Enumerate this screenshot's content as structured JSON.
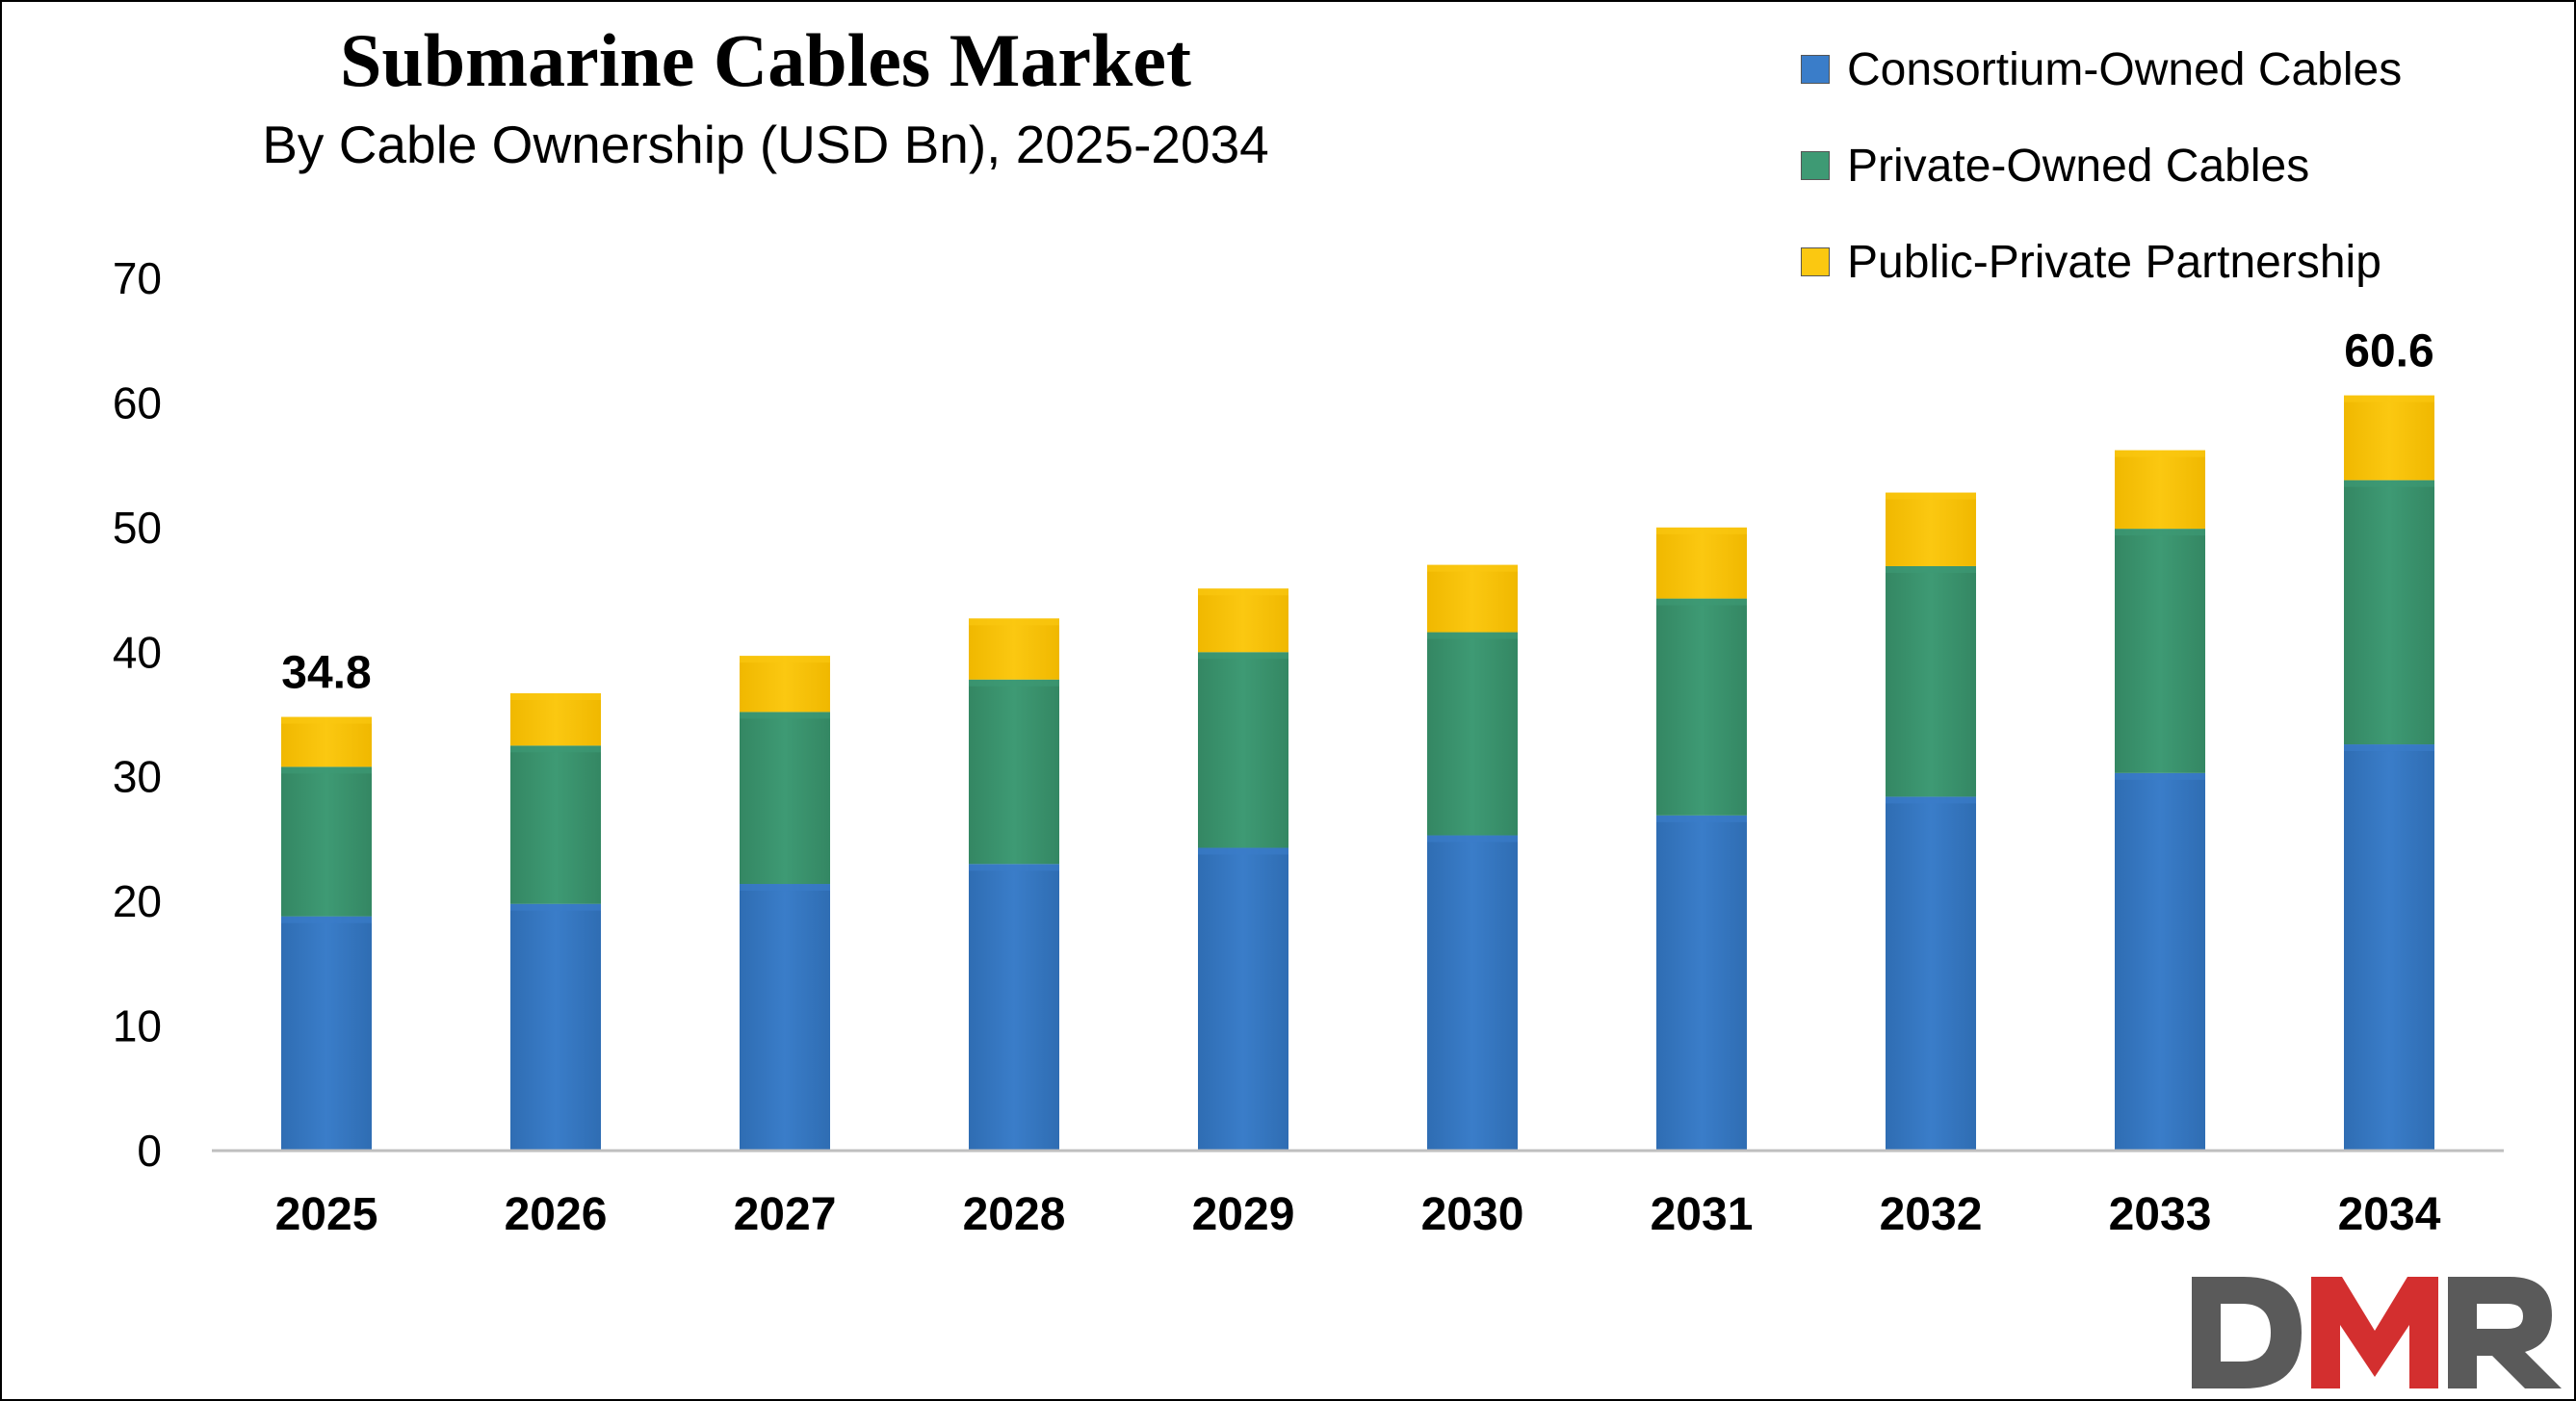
{
  "chart_data": {
    "type": "bar",
    "stacked": true,
    "title": "Submarine Cables Market",
    "subtitle": "By Cable Ownership (USD Bn), 2025-2034",
    "categories": [
      "2025",
      "2026",
      "2027",
      "2028",
      "2029",
      "2030",
      "2031",
      "2032",
      "2033",
      "2034"
    ],
    "series": [
      {
        "name": "Consortium-Owned Cables",
        "color": "#3a7dc9",
        "values": [
          18.8,
          19.8,
          21.4,
          23.0,
          24.3,
          25.3,
          26.9,
          28.4,
          30.3,
          32.6
        ]
      },
      {
        "name": "Private-Owned Cables",
        "color": "#3e9a74",
        "values": [
          12.0,
          12.7,
          13.8,
          14.8,
          15.7,
          16.3,
          17.4,
          18.5,
          19.6,
          21.2
        ]
      },
      {
        "name": "Public-Private Partnership",
        "color": "#fbc811",
        "values": [
          4.0,
          4.2,
          4.5,
          4.9,
          5.1,
          5.4,
          5.7,
          5.9,
          6.3,
          6.8
        ]
      }
    ],
    "totals_labels": {
      "2025": "34.8",
      "2034": "60.6"
    },
    "ylim": [
      0,
      70
    ],
    "yticks": [
      0,
      10,
      20,
      30,
      40,
      50,
      60,
      70
    ],
    "xlabel": "",
    "ylabel": "",
    "grid": false,
    "legend_position": "top-right"
  },
  "logo": {
    "text": "DMR",
    "colors": [
      "#5a5a5a",
      "#d32f2f"
    ]
  }
}
